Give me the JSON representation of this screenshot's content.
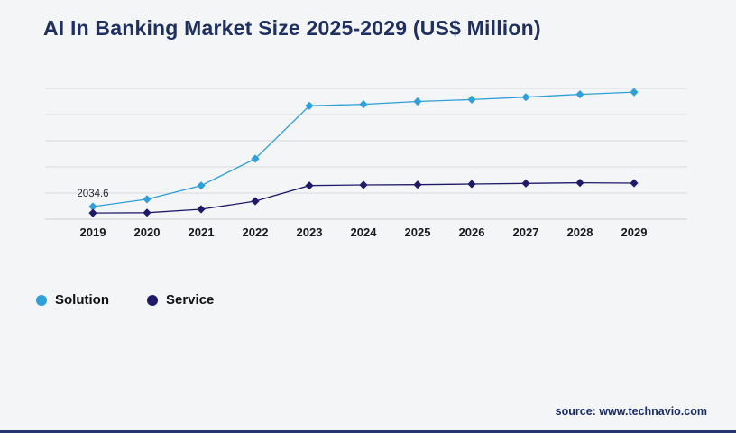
{
  "page": {
    "source": "source: www.technavio.com",
    "background_color": "#f4f5f7",
    "accent_bottom_bar_color": "#24356f",
    "title_color": "#1f3060"
  },
  "chart_data": {
    "type": "line",
    "title": "AI In Banking Market Size 2025-2029 (US$ Million)",
    "xlabel": "",
    "ylabel": "US$ Million",
    "categories": [
      "2019",
      "2020",
      "2021",
      "2022",
      "2023",
      "2024",
      "2025",
      "2026",
      "2027",
      "2028",
      "2029"
    ],
    "series": [
      {
        "name": "Solution",
        "color": "#2e9fd8",
        "marker": "diamond",
        "values": [
          2034.6,
          3200,
          5400,
          9700,
          18200,
          18450,
          18900,
          19200,
          19600,
          20050,
          20400
        ]
      },
      {
        "name": "Service",
        "color": "#1e1a68",
        "marker": "diamond",
        "values": [
          1000,
          1050,
          1600,
          2900,
          5400,
          5500,
          5550,
          5650,
          5750,
          5850,
          5800
        ]
      }
    ],
    "ylim": [
      0,
      21000
    ],
    "gridline_count": 6,
    "grid": true,
    "legend_position": "bottom-left",
    "annotations": [
      {
        "text": "2034.6",
        "series": 0,
        "index": 0
      }
    ]
  }
}
